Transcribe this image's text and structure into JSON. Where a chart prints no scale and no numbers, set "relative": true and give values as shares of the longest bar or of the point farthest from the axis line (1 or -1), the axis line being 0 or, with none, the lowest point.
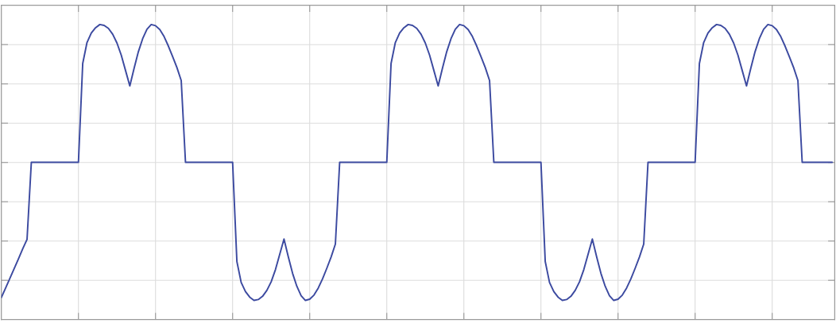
{
  "chart_data": {
    "type": "line",
    "relative": true,
    "grid": true,
    "categories": [
      null,
      null,
      null,
      null,
      null,
      null,
      null,
      null,
      null,
      null,
      null,
      null,
      null,
      null,
      null,
      null,
      null,
      null,
      null,
      null,
      null,
      null,
      null,
      null,
      null,
      null,
      null,
      null,
      null,
      null,
      null,
      null,
      null,
      null,
      null,
      null,
      null,
      null,
      null,
      null,
      null,
      null,
      null,
      null,
      null,
      null,
      null,
      null,
      null,
      null,
      null,
      null,
      null,
      null,
      null,
      null,
      null,
      null,
      null,
      null,
      null,
      null,
      null,
      null,
      null,
      null,
      null,
      null,
      null,
      null,
      null,
      null,
      null,
      null,
      null,
      null,
      null,
      null,
      null,
      null,
      null,
      null,
      null,
      null,
      null,
      null,
      null,
      null,
      null,
      null,
      null,
      null,
      null,
      null,
      null,
      null,
      null,
      null,
      null,
      null,
      null,
      null,
      null,
      null,
      null,
      null,
      null,
      null,
      null,
      null,
      null,
      null,
      null,
      null,
      null,
      null,
      null,
      null,
      null,
      null,
      null,
      null,
      null,
      null,
      null,
      null,
      null,
      null,
      null,
      null,
      null,
      null,
      null,
      null,
      null,
      null,
      null,
      null,
      null,
      null,
      null,
      null,
      null,
      null,
      null,
      null,
      null,
      null,
      null,
      null,
      null,
      null,
      null,
      null,
      null,
      null,
      null,
      null,
      null,
      null,
      null,
      null,
      null,
      null,
      null,
      null,
      null,
      null,
      null,
      null,
      null,
      null,
      null,
      null,
      null,
      null,
      null,
      null,
      null,
      null,
      null,
      null,
      null,
      null,
      null,
      null,
      null,
      null,
      null,
      null,
      null,
      null,
      null,
      null,
      null
    ],
    "series": [
      {
        "color": "#3c4aa0",
        "values": [
          0.075,
          0.107,
          0.14,
          0.173,
          0.206,
          0.24,
          0.272,
          0.533,
          0.533,
          0.533,
          0.533,
          0.533,
          0.533,
          0.533,
          0.533,
          0.533,
          0.533,
          0.533,
          0.533,
          0.868,
          0.939,
          0.971,
          0.989,
          1,
          0.997,
          0.987,
          0.967,
          0.937,
          0.896,
          0.844,
          0.792,
          0.852,
          0.908,
          0.952,
          0.984,
          1,
          0.996,
          0.983,
          0.959,
          0.927,
          0.891,
          0.854,
          0.81,
          0.533,
          0.533,
          0.533,
          0.533,
          0.533,
          0.533,
          0.533,
          0.533,
          0.533,
          0.533,
          0.533,
          0.533,
          0.197,
          0.126,
          0.095,
          0.076,
          0.065,
          0.068,
          0.079,
          0.099,
          0.128,
          0.169,
          0.221,
          0.273,
          0.213,
          0.157,
          0.113,
          0.081,
          0.065,
          0.069,
          0.083,
          0.107,
          0.138,
          0.174,
          0.212,
          0.256,
          0.533,
          0.533,
          0.533,
          0.533,
          0.533,
          0.533,
          0.533,
          0.533,
          0.533,
          0.533,
          0.533,
          0.533,
          0.868,
          0.939,
          0.971,
          0.989,
          1,
          0.997,
          0.987,
          0.967,
          0.937,
          0.896,
          0.844,
          0.792,
          0.852,
          0.908,
          0.952,
          0.984,
          1,
          0.996,
          0.983,
          0.959,
          0.927,
          0.891,
          0.854,
          0.81,
          0.533,
          0.533,
          0.533,
          0.533,
          0.533,
          0.533,
          0.533,
          0.533,
          0.533,
          0.533,
          0.533,
          0.533,
          0.197,
          0.126,
          0.095,
          0.076,
          0.065,
          0.068,
          0.079,
          0.099,
          0.128,
          0.169,
          0.221,
          0.273,
          0.213,
          0.157,
          0.113,
          0.081,
          0.065,
          0.069,
          0.083,
          0.107,
          0.138,
          0.174,
          0.212,
          0.256,
          0.533,
          0.533,
          0.533,
          0.533,
          0.533,
          0.533,
          0.533,
          0.533,
          0.533,
          0.533,
          0.533,
          0.533,
          0.868,
          0.939,
          0.971,
          0.989,
          1,
          0.997,
          0.987,
          0.967,
          0.937,
          0.896,
          0.844,
          0.792,
          0.852,
          0.908,
          0.952,
          0.984,
          1,
          0.996,
          0.983,
          0.959,
          0.927,
          0.891,
          0.854,
          0.81,
          0.533,
          0.533,
          0.533,
          0.533,
          0.533,
          0.533,
          0.533,
          0.533
        ]
      }
    ]
  }
}
